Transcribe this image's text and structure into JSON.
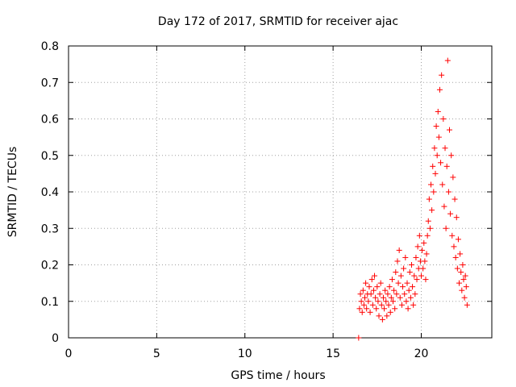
{
  "chart_data": {
    "type": "scatter",
    "title": "Day 172 of 2017, SRMTID for receiver ajac",
    "xlabel": "GPS time / hours",
    "ylabel": "SRMTID / TECUs",
    "xlim": [
      0,
      24
    ],
    "ylim": [
      0,
      0.8
    ],
    "xticks": [
      0,
      5,
      10,
      15,
      20
    ],
    "yticks": [
      0,
      0.1,
      0.2,
      0.3,
      0.4,
      0.5,
      0.6,
      0.7,
      0.8
    ],
    "grid": true,
    "marker": "+",
    "series_color": "#ff0000",
    "series": [
      {
        "name": "SRMTID",
        "points": [
          [
            16.45,
            0.0
          ],
          [
            16.5,
            0.08
          ],
          [
            16.55,
            0.12
          ],
          [
            16.6,
            0.1
          ],
          [
            16.65,
            0.07
          ],
          [
            16.7,
            0.13
          ],
          [
            16.75,
            0.09
          ],
          [
            16.8,
            0.11
          ],
          [
            16.85,
            0.15
          ],
          [
            16.9,
            0.08
          ],
          [
            16.95,
            0.12
          ],
          [
            17.0,
            0.1
          ],
          [
            17.05,
            0.14
          ],
          [
            17.1,
            0.07
          ],
          [
            17.15,
            0.12
          ],
          [
            17.2,
            0.16
          ],
          [
            17.25,
            0.09
          ],
          [
            17.3,
            0.13
          ],
          [
            17.35,
            0.17
          ],
          [
            17.4,
            0.11
          ],
          [
            17.45,
            0.08
          ],
          [
            17.5,
            0.14
          ],
          [
            17.55,
            0.1
          ],
          [
            17.6,
            0.06
          ],
          [
            17.65,
            0.12
          ],
          [
            17.7,
            0.15
          ],
          [
            17.75,
            0.09
          ],
          [
            17.8,
            0.05
          ],
          [
            17.85,
            0.11
          ],
          [
            17.9,
            0.08
          ],
          [
            17.95,
            0.13
          ],
          [
            18.0,
            0.1
          ],
          [
            18.05,
            0.06
          ],
          [
            18.1,
            0.12
          ],
          [
            18.15,
            0.09
          ],
          [
            18.2,
            0.14
          ],
          [
            18.25,
            0.07
          ],
          [
            18.3,
            0.11
          ],
          [
            18.35,
            0.16
          ],
          [
            18.4,
            0.1
          ],
          [
            18.45,
            0.13
          ],
          [
            18.5,
            0.08
          ],
          [
            18.55,
            0.18
          ],
          [
            18.6,
            0.12
          ],
          [
            18.65,
            0.21
          ],
          [
            18.7,
            0.15
          ],
          [
            18.75,
            0.24
          ],
          [
            18.8,
            0.11
          ],
          [
            18.85,
            0.17
          ],
          [
            18.9,
            0.09
          ],
          [
            18.95,
            0.14
          ],
          [
            19.0,
            0.19
          ],
          [
            19.05,
            0.12
          ],
          [
            19.1,
            0.22
          ],
          [
            19.15,
            0.1
          ],
          [
            19.2,
            0.15
          ],
          [
            19.25,
            0.08
          ],
          [
            19.3,
            0.13
          ],
          [
            19.35,
            0.18
          ],
          [
            19.4,
            0.11
          ],
          [
            19.45,
            0.2
          ],
          [
            19.5,
            0.14
          ],
          [
            19.55,
            0.09
          ],
          [
            19.6,
            0.17
          ],
          [
            19.65,
            0.12
          ],
          [
            19.7,
            0.22
          ],
          [
            19.75,
            0.16
          ],
          [
            19.8,
            0.25
          ],
          [
            19.85,
            0.19
          ],
          [
            19.9,
            0.28
          ],
          [
            19.95,
            0.21
          ],
          [
            20.0,
            0.17
          ],
          [
            20.05,
            0.24
          ],
          [
            20.1,
            0.19
          ],
          [
            20.15,
            0.26
          ],
          [
            20.2,
            0.21
          ],
          [
            20.25,
            0.16
          ],
          [
            20.3,
            0.23
          ],
          [
            20.35,
            0.28
          ],
          [
            20.4,
            0.32
          ],
          [
            20.45,
            0.38
          ],
          [
            20.5,
            0.3
          ],
          [
            20.55,
            0.42
          ],
          [
            20.6,
            0.35
          ],
          [
            20.65,
            0.47
          ],
          [
            20.7,
            0.4
          ],
          [
            20.75,
            0.52
          ],
          [
            20.8,
            0.45
          ],
          [
            20.85,
            0.58
          ],
          [
            20.9,
            0.5
          ],
          [
            20.95,
            0.62
          ],
          [
            21.0,
            0.55
          ],
          [
            21.05,
            0.68
          ],
          [
            21.1,
            0.48
          ],
          [
            21.15,
            0.72
          ],
          [
            21.2,
            0.42
          ],
          [
            21.25,
            0.6
          ],
          [
            21.3,
            0.36
          ],
          [
            21.35,
            0.52
          ],
          [
            21.4,
            0.3
          ],
          [
            21.45,
            0.47
          ],
          [
            21.5,
            0.76
          ],
          [
            21.55,
            0.4
          ],
          [
            21.6,
            0.57
          ],
          [
            21.65,
            0.34
          ],
          [
            21.7,
            0.5
          ],
          [
            21.75,
            0.28
          ],
          [
            21.8,
            0.44
          ],
          [
            21.85,
            0.25
          ],
          [
            21.9,
            0.38
          ],
          [
            21.95,
            0.22
          ],
          [
            22.0,
            0.33
          ],
          [
            22.05,
            0.19
          ],
          [
            22.1,
            0.27
          ],
          [
            22.15,
            0.15
          ],
          [
            22.2,
            0.23
          ],
          [
            22.25,
            0.18
          ],
          [
            22.3,
            0.13
          ],
          [
            22.35,
            0.2
          ],
          [
            22.4,
            0.16
          ],
          [
            22.45,
            0.11
          ],
          [
            22.5,
            0.17
          ],
          [
            22.55,
            0.14
          ],
          [
            22.6,
            0.09
          ]
        ]
      }
    ]
  }
}
